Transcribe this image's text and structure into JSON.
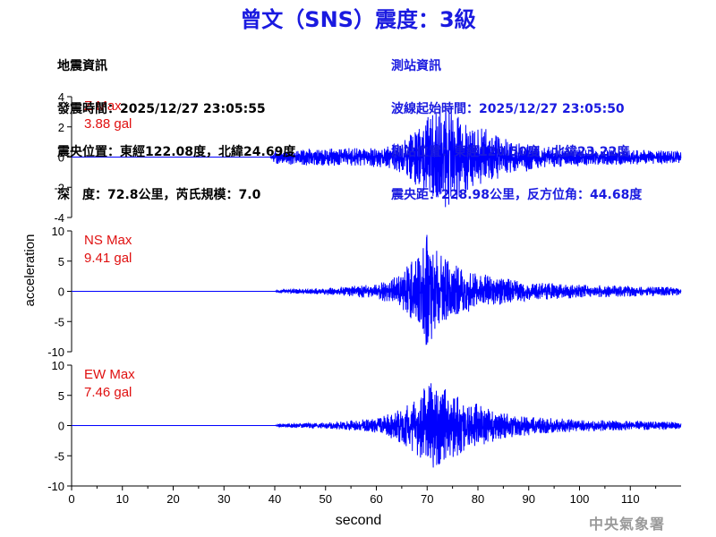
{
  "title": "曾文（SNS）震度：3級",
  "quake_info": {
    "heading": "地震資訊",
    "origin_time": "發震時間：2025/12/27 23:05:55",
    "epicenter": "震央位置：東經122.08度，北緯24.69度",
    "depth_magnitude": "深　度：72.8公里，芮氏規模：7.0"
  },
  "station_info": {
    "heading": "測站資訊",
    "wave_start": "波線起始時間：2025/12/27 23:05:50",
    "location": "測站位置：東經120.50度，北緯23.22度",
    "distance_azimuth": "震央距：228.98公里，反方位角：44.68度"
  },
  "watermark": "中央氣象署",
  "chart_data": {
    "type": "line",
    "xlabel": "second",
    "ylabel": "acceleration",
    "xlim": [
      0,
      120
    ],
    "x_ticks": [
      0,
      10,
      20,
      30,
      40,
      50,
      60,
      70,
      80,
      90,
      100,
      110
    ],
    "line_color": "#0000ff",
    "max_color": "#e01010",
    "panels": [
      {
        "component": "Z",
        "max_label": "Z Max",
        "max_value": "3.88 gal",
        "ylim": [
          -4,
          4
        ],
        "y_ticks": [
          -4,
          -2,
          0,
          2,
          4
        ],
        "envelope": [
          [
            0,
            0
          ],
          [
            39,
            0
          ],
          [
            40,
            0.45
          ],
          [
            45,
            0.55
          ],
          [
            55,
            0.6
          ],
          [
            62,
            0.7
          ],
          [
            66,
            1.3
          ],
          [
            68,
            2.0
          ],
          [
            70,
            2.6
          ],
          [
            72,
            3.3
          ],
          [
            73,
            3.88
          ],
          [
            75,
            3.0
          ],
          [
            78,
            2.4
          ],
          [
            82,
            1.8
          ],
          [
            86,
            1.1
          ],
          [
            92,
            0.8
          ],
          [
            100,
            0.6
          ],
          [
            110,
            0.5
          ],
          [
            120,
            0.4
          ]
        ]
      },
      {
        "component": "NS",
        "max_label": "NS Max",
        "max_value": "9.41 gal",
        "ylim": [
          -10,
          10
        ],
        "y_ticks": [
          -10,
          -5,
          0,
          5,
          10
        ],
        "envelope": [
          [
            0,
            0
          ],
          [
            40,
            0
          ],
          [
            41,
            0.3
          ],
          [
            50,
            0.6
          ],
          [
            60,
            1.2
          ],
          [
            64,
            2.5
          ],
          [
            67,
            5.0
          ],
          [
            69,
            8.0
          ],
          [
            70,
            9.41
          ],
          [
            72,
            7.0
          ],
          [
            75,
            4.5
          ],
          [
            80,
            3.0
          ],
          [
            85,
            2.2
          ],
          [
            92,
            1.5
          ],
          [
            100,
            1.1
          ],
          [
            110,
            0.9
          ],
          [
            120,
            0.7
          ]
        ]
      },
      {
        "component": "EW",
        "max_label": "EW Max",
        "max_value": "7.46 gal",
        "ylim": [
          -10,
          10
        ],
        "y_ticks": [
          -10,
          -5,
          0,
          5,
          10
        ],
        "envelope": [
          [
            0,
            0
          ],
          [
            40,
            0
          ],
          [
            41,
            0.3
          ],
          [
            50,
            0.5
          ],
          [
            60,
            1.2
          ],
          [
            64,
            2.5
          ],
          [
            67,
            4.5
          ],
          [
            69,
            6.0
          ],
          [
            71,
            7.46
          ],
          [
            73,
            6.5
          ],
          [
            76,
            5.0
          ],
          [
            80,
            3.6
          ],
          [
            85,
            2.2
          ],
          [
            92,
            1.4
          ],
          [
            100,
            1.0
          ],
          [
            110,
            0.8
          ],
          [
            120,
            0.6
          ]
        ]
      }
    ]
  }
}
